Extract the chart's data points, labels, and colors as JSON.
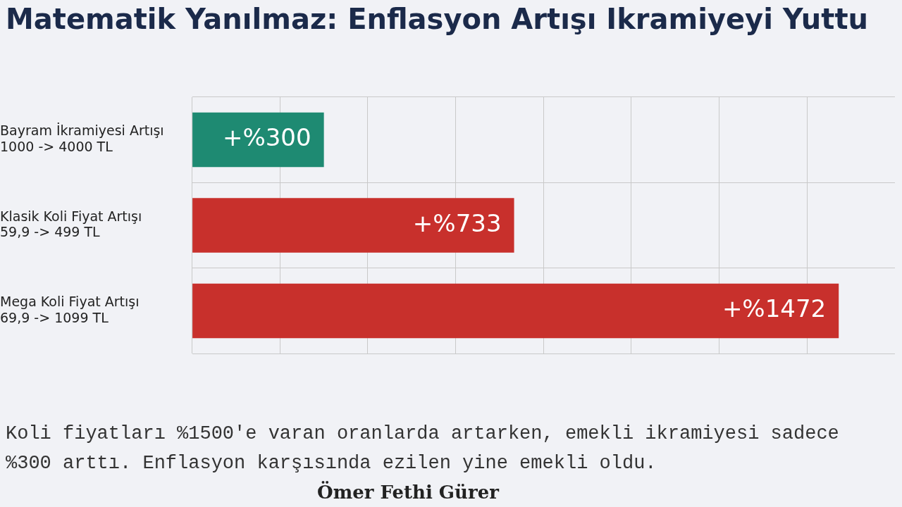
{
  "chart_data": {
    "type": "bar",
    "orientation": "horizontal",
    "title": "Matematik Yanılmaz: Enflasyon Artışı Ikramiyeyi Yuttu",
    "categories": [
      "Bayram İkramiyesi Artışı\n1000 -> 4000 TL",
      "Klasik Koli Fiyat Artışı\n59,9 -> 499 TL",
      "Mega Koli Fiyat Artışı\n69,9 -> 1099 TL"
    ],
    "values": [
      300,
      733,
      1472
    ],
    "colors": [
      "#1e8a72",
      "#c8302c",
      "#c8302c"
    ],
    "value_labels": [
      "+%300",
      "+%733",
      "+%1472"
    ],
    "tick_labels": "y",
    "grid": true,
    "legend": false,
    "annotations": [
      "Koli fiyatları %1500'e varan oranlarda artarken, emekli ikramiyesi sadece %300 arttı. Enflasyon karşısında ezilen yine emekli oldu.",
      "Ömer Fethi Gürer"
    ]
  }
}
